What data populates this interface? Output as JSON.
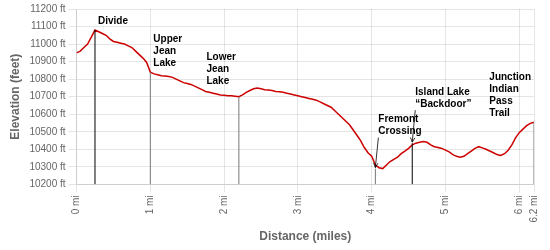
{
  "chart_data": {
    "type": "line",
    "xlabel": "Distance (miles)",
    "ylabel": "Elevation (feet)",
    "color": "#cc0000",
    "grid": true,
    "xlim": [
      0,
      6.2
    ],
    "ylim": [
      10200,
      11200
    ],
    "xticks": [
      {
        "value": 0,
        "label": "0 mi"
      },
      {
        "value": 1,
        "label": "1 mi"
      },
      {
        "value": 2,
        "label": "2 mi"
      },
      {
        "value": 3,
        "label": "3 mi"
      },
      {
        "value": 4,
        "label": "4 mi"
      },
      {
        "value": 5,
        "label": "5 mi"
      },
      {
        "value": 6,
        "label": "6 mi"
      },
      {
        "value": 6.2,
        "label": "6.2 mi"
      }
    ],
    "yticks": [
      {
        "value": 10200,
        "label": "10200 ft"
      },
      {
        "value": 10300,
        "label": "10300 ft"
      },
      {
        "value": 10400,
        "label": "10400 ft"
      },
      {
        "value": 10500,
        "label": "10500 ft"
      },
      {
        "value": 10600,
        "label": "10600 ft"
      },
      {
        "value": 10700,
        "label": "10700 ft"
      },
      {
        "value": 10800,
        "label": "10800 ft"
      },
      {
        "value": 10900,
        "label": "10900 ft"
      },
      {
        "value": 11000,
        "label": "11000 ft"
      },
      {
        "value": 11100,
        "label": "11100 ft"
      },
      {
        "value": 11200,
        "label": "11200 ft"
      }
    ],
    "x": [
      0,
      0.05,
      0.1,
      0.15,
      0.2,
      0.25,
      0.3,
      0.35,
      0.4,
      0.45,
      0.5,
      0.55,
      0.6,
      0.65,
      0.7,
      0.75,
      0.8,
      0.85,
      0.9,
      0.95,
      1.0,
      1.05,
      1.1,
      1.15,
      1.2,
      1.25,
      1.3,
      1.35,
      1.4,
      1.45,
      1.5,
      1.55,
      1.6,
      1.65,
      1.7,
      1.75,
      1.8,
      1.85,
      1.9,
      1.95,
      2.0,
      2.05,
      2.1,
      2.15,
      2.2,
      2.25,
      2.3,
      2.35,
      2.4,
      2.45,
      2.5,
      2.55,
      2.6,
      2.65,
      2.7,
      2.75,
      2.8,
      2.85,
      2.9,
      2.95,
      3.0,
      3.05,
      3.1,
      3.15,
      3.2,
      3.25,
      3.3,
      3.35,
      3.4,
      3.45,
      3.5,
      3.55,
      3.6,
      3.65,
      3.7,
      3.75,
      3.8,
      3.85,
      3.9,
      3.95,
      4.0,
      4.05,
      4.1,
      4.15,
      4.2,
      4.25,
      4.35,
      4.4,
      4.45,
      4.5,
      4.55,
      4.6,
      4.65,
      4.7,
      4.75,
      4.8,
      4.85,
      4.9,
      4.95,
      5.0,
      5.05,
      5.1,
      5.15,
      5.2,
      5.25,
      5.3,
      5.35,
      5.4,
      5.45,
      5.5,
      5.55,
      5.6,
      5.65,
      5.7,
      5.75,
      5.8,
      5.85,
      5.9,
      5.95,
      6.0,
      6.05,
      6.1,
      6.15,
      6.2
    ],
    "values": [
      10950,
      10960,
      10980,
      11000,
      11040,
      11080,
      11070,
      11060,
      11050,
      11030,
      11015,
      11010,
      11005,
      11000,
      10990,
      10980,
      10960,
      10940,
      10920,
      10895,
      10840,
      10830,
      10825,
      10820,
      10818,
      10815,
      10810,
      10800,
      10790,
      10780,
      10775,
      10770,
      10760,
      10750,
      10740,
      10730,
      10725,
      10720,
      10715,
      10710,
      10708,
      10705,
      10705,
      10703,
      10700,
      10710,
      10725,
      10735,
      10745,
      10750,
      10745,
      10740,
      10738,
      10735,
      10730,
      10728,
      10725,
      10720,
      10715,
      10710,
      10705,
      10700,
      10695,
      10690,
      10685,
      10680,
      10670,
      10660,
      10650,
      10640,
      10620,
      10600,
      10580,
      10560,
      10540,
      10510,
      10480,
      10450,
      10410,
      10380,
      10360,
      10310,
      10295,
      10290,
      10310,
      10330,
      10355,
      10375,
      10390,
      10405,
      10425,
      10435,
      10440,
      10445,
      10440,
      10425,
      10415,
      10410,
      10405,
      10395,
      10385,
      10370,
      10360,
      10355,
      10360,
      10375,
      10390,
      10405,
      10415,
      10408,
      10400,
      10390,
      10380,
      10370,
      10365,
      10375,
      10395,
      10425,
      10465,
      10495,
      10515,
      10535,
      10548,
      10555
    ],
    "annotations": [
      {
        "text": "Divide",
        "x": 0.25,
        "y": 11080,
        "color": "#000000"
      },
      {
        "text": "Upper\nJean\nLake",
        "x": 1.0,
        "y": 10840,
        "color": "#777777"
      },
      {
        "text": "Lower\nJean\nLake",
        "x": 2.2,
        "y": 10700,
        "color": "#777777"
      },
      {
        "text": "Fremont\nCrossing",
        "x": 4.05,
        "y": 10290,
        "color": "#777777"
      },
      {
        "text": "Island Lake\n“Backdoor”",
        "x": 4.55,
        "y": 10435,
        "color": "#000000"
      },
      {
        "text": "Junction\nIndian\nPass\nTrail",
        "x": 6.2,
        "y": 10555,
        "color": "#777777"
      }
    ]
  }
}
